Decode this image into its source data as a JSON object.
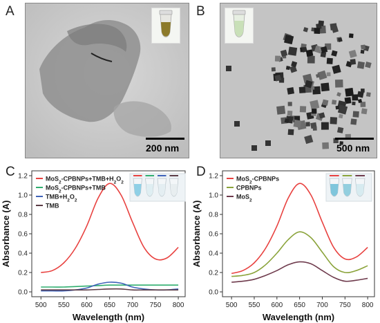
{
  "panels": {
    "a": {
      "letter": "A",
      "scale_label": "200 nm"
    },
    "b": {
      "letter": "B",
      "scale_label": "500 nm"
    },
    "c": {
      "letter": "C"
    },
    "d": {
      "letter": "D"
    }
  },
  "colors": {
    "red": "#e8413f",
    "green": "#2fae6e",
    "blue": "#3e62b8",
    "dark": "#5b3b45",
    "olive": "#8aa33a",
    "plum": "#6e3a4c"
  },
  "chart_data": [
    {
      "panel": "C",
      "type": "line",
      "title": "",
      "xlabel": "Wavelength (nm)",
      "ylabel": "Absorbance (A)",
      "xlim": [
        480,
        815
      ],
      "ylim": [
        -0.05,
        1.25
      ],
      "xticks": [
        500,
        550,
        600,
        650,
        700,
        750,
        800
      ],
      "yticks": [
        0.0,
        0.2,
        0.4,
        0.6,
        0.8,
        1.0,
        1.2
      ],
      "x": [
        500,
        525,
        550,
        575,
        600,
        625,
        650,
        675,
        700,
        725,
        750,
        775,
        800
      ],
      "legend_position": "top-left",
      "series": [
        {
          "name": "MoS2-CPBNPs+TMB+H2O2",
          "color_key": "red",
          "values": [
            0.2,
            0.22,
            0.3,
            0.45,
            0.68,
            0.97,
            1.12,
            1.0,
            0.72,
            0.46,
            0.34,
            0.35,
            0.46
          ]
        },
        {
          "name": "MoS2-CPBNPs+TMB",
          "color_key": "green",
          "values": [
            0.05,
            0.05,
            0.05,
            0.055,
            0.06,
            0.065,
            0.07,
            0.07,
            0.07,
            0.07,
            0.07,
            0.07,
            0.07
          ]
        },
        {
          "name": "TMB+H2O2",
          "color_key": "blue",
          "values": [
            0.01,
            0.01,
            0.01,
            0.02,
            0.04,
            0.08,
            0.1,
            0.09,
            0.05,
            0.03,
            0.02,
            0.02,
            0.03
          ]
        },
        {
          "name": "TMB",
          "color_key": "dark",
          "values": [
            0.02,
            0.02,
            0.02,
            0.02,
            0.02,
            0.025,
            0.03,
            0.03,
            0.02,
            0.02,
            0.02,
            0.02,
            0.02
          ]
        }
      ],
      "legend_labels": [
        {
          "main": "MoS",
          "sub": "2",
          "rest": "-CPBNPs+TMB+H",
          "sub2": "2",
          "rest2": "O",
          "sub3": "2"
        },
        {
          "main": "MoS",
          "sub": "2",
          "rest": "-CPBNPs+TMB",
          "sub2": "",
          "rest2": "",
          "sub3": ""
        },
        {
          "main": "TMB+H",
          "sub": "2",
          "rest": "O",
          "sub2": "2",
          "rest2": "",
          "sub3": ""
        },
        {
          "main": "TMB",
          "sub": "",
          "rest": "",
          "sub2": "",
          "rest2": "",
          "sub3": ""
        }
      ]
    },
    {
      "panel": "D",
      "type": "line",
      "title": "",
      "xlabel": "Wavelength (nm)",
      "ylabel": "Absorbance (A)",
      "xlim": [
        480,
        815
      ],
      "ylim": [
        -0.05,
        1.25
      ],
      "xticks": [
        500,
        550,
        600,
        650,
        700,
        750,
        800
      ],
      "yticks": [
        0.0,
        0.2,
        0.4,
        0.6,
        0.8,
        1.0,
        1.2
      ],
      "x": [
        500,
        525,
        550,
        575,
        600,
        625,
        650,
        675,
        700,
        725,
        750,
        775,
        800
      ],
      "legend_position": "top-left",
      "series": [
        {
          "name": "MoS2-CPBNPs",
          "color_key": "red",
          "values": [
            0.19,
            0.22,
            0.3,
            0.45,
            0.68,
            0.97,
            1.12,
            1.0,
            0.72,
            0.46,
            0.34,
            0.36,
            0.46
          ]
        },
        {
          "name": "CPBNPs",
          "color_key": "olive",
          "values": [
            0.16,
            0.17,
            0.2,
            0.28,
            0.4,
            0.54,
            0.62,
            0.56,
            0.41,
            0.26,
            0.2,
            0.22,
            0.27
          ]
        },
        {
          "name": "MoS2",
          "color_key": "plum",
          "values": [
            0.1,
            0.11,
            0.13,
            0.17,
            0.22,
            0.28,
            0.31,
            0.29,
            0.22,
            0.15,
            0.11,
            0.12,
            0.14
          ]
        }
      ],
      "legend_labels": [
        {
          "main": "MoS",
          "sub": "2",
          "rest": "-CPBNPs",
          "sub2": "",
          "rest2": "",
          "sub3": ""
        },
        {
          "main": "CPBNPs",
          "sub": "",
          "rest": "",
          "sub2": "",
          "rest2": "",
          "sub3": ""
        },
        {
          "main": "MoS",
          "sub": "2",
          "rest": "",
          "sub2": "",
          "rest2": "",
          "sub3": ""
        }
      ]
    }
  ]
}
